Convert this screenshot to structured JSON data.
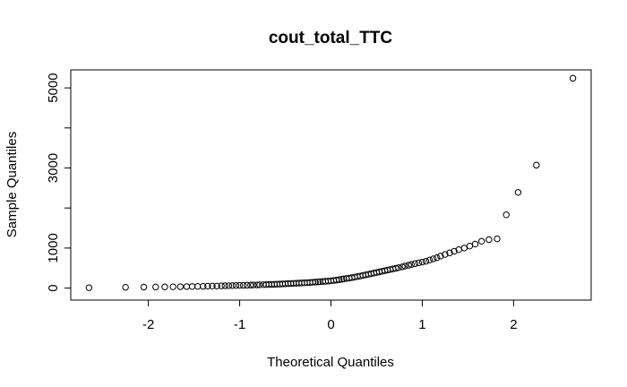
{
  "chart_data": {
    "type": "scatter",
    "title": "cout_total_TTC",
    "xlabel": "Theoretical Quantiles",
    "ylabel": "Sample Quantiles",
    "xlim": [
      -2.85,
      2.85
    ],
    "ylim": [
      -300,
      5450
    ],
    "x_ticks": [
      -2,
      -1,
      0,
      1,
      2
    ],
    "x_tick_labels": [
      "-2",
      "-1",
      "0",
      "1",
      "2"
    ],
    "y_ticks": [
      0,
      1000,
      3000,
      5000
    ],
    "y_tick_labels": [
      "0",
      "1000",
      "3000",
      "5000"
    ],
    "y_minor_ticks": [
      2000,
      4000
    ],
    "grid": false,
    "marker": "open-circle",
    "colors": {
      "points": "#000000",
      "axes": "#000000",
      "background": "#ffffff"
    },
    "points": {
      "x": [
        -2.65,
        -2.25,
        -2.05,
        -1.92,
        -1.82,
        -1.73,
        -1.65,
        -1.58,
        -1.52,
        -1.46,
        -1.4,
        -1.35,
        -1.3,
        -1.25,
        -1.2,
        -1.16,
        -1.12,
        -1.08,
        -1.04,
        -1.0,
        -0.96,
        -0.92,
        -0.88,
        -0.85,
        -0.81,
        -0.78,
        -0.74,
        -0.71,
        -0.68,
        -0.65,
        -0.62,
        -0.59,
        -0.56,
        -0.53,
        -0.5,
        -0.47,
        -0.44,
        -0.41,
        -0.38,
        -0.35,
        -0.32,
        -0.29,
        -0.26,
        -0.23,
        -0.2,
        -0.17,
        -0.14,
        -0.12,
        -0.09,
        -0.06,
        -0.03,
        0.0,
        0.03,
        0.06,
        0.09,
        0.12,
        0.14,
        0.17,
        0.2,
        0.23,
        0.26,
        0.29,
        0.32,
        0.35,
        0.38,
        0.41,
        0.44,
        0.47,
        0.5,
        0.53,
        0.56,
        0.59,
        0.62,
        0.65,
        0.68,
        0.71,
        0.74,
        0.78,
        0.81,
        0.85,
        0.88,
        0.92,
        0.96,
        1.0,
        1.04,
        1.08,
        1.12,
        1.16,
        1.2,
        1.25,
        1.3,
        1.35,
        1.4,
        1.46,
        1.52,
        1.58,
        1.65,
        1.73,
        1.82,
        1.92,
        2.05,
        2.25,
        2.65
      ],
      "y": [
        10,
        20,
        25,
        28,
        30,
        32,
        35,
        38,
        40,
        42,
        45,
        48,
        50,
        52,
        55,
        58,
        60,
        62,
        65,
        68,
        70,
        72,
        75,
        78,
        80,
        82,
        85,
        88,
        90,
        92,
        95,
        98,
        100,
        105,
        108,
        112,
        115,
        118,
        122,
        125,
        128,
        132,
        135,
        140,
        145,
        150,
        155,
        160,
        165,
        170,
        175,
        180,
        190,
        200,
        210,
        220,
        230,
        240,
        250,
        262,
        275,
        288,
        300,
        315,
        330,
        345,
        360,
        375,
        390,
        405,
        420,
        435,
        450,
        465,
        480,
        495,
        510,
        530,
        550,
        570,
        590,
        610,
        630,
        650,
        670,
        700,
        730,
        760,
        800,
        840,
        880,
        920,
        960,
        1000,
        1050,
        1100,
        1170,
        1210,
        1230,
        1830,
        2390,
        3070,
        5240
      ]
    }
  }
}
